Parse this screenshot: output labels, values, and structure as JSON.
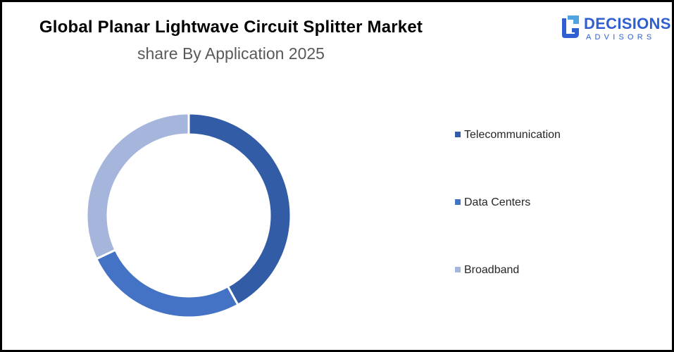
{
  "chart_data": {
    "type": "pie",
    "style": "donut",
    "title": "Global Planar Lightwave Circuit Splitter Market",
    "subtitle": "share By Application 2025",
    "categories": [
      "Telecommunication",
      "Data Centers",
      "Broadband"
    ],
    "values": [
      42,
      26,
      32
    ],
    "colors": [
      "#335ca6",
      "#4472c4",
      "#a6b5db"
    ],
    "legend_position": "right"
  },
  "logo": {
    "word": "DECISIONS",
    "sub": "ADVISORS",
    "color": "#2f5fd0"
  }
}
